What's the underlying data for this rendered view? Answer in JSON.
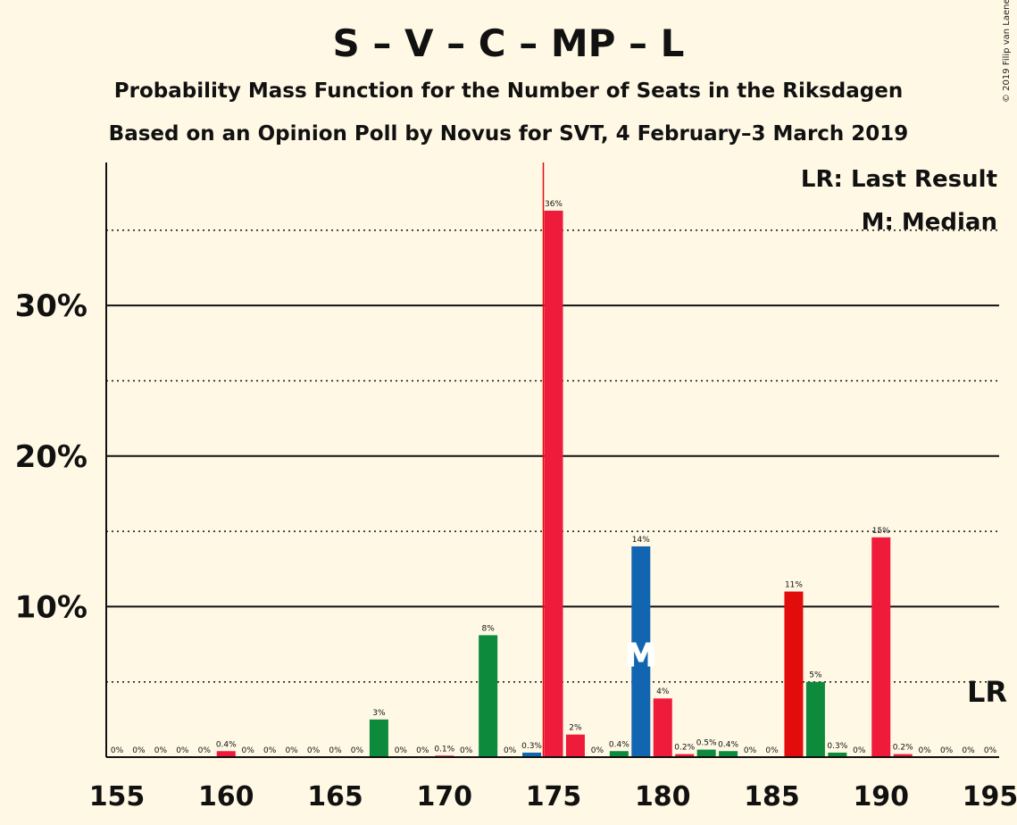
{
  "title": "S – V – C – MP – L",
  "subtitle1": "Probability Mass Function for the Number of Seats in the Riksdagen",
  "subtitle2": "Based on an Opinion Poll by Novus for SVT, 4 February–3 March 2019",
  "copyright": "© 2019 Filip van Laenen",
  "legend": {
    "last_result": "LR: Last Result",
    "median": "M: Median",
    "lr_marker": "LR",
    "median_marker": "M"
  },
  "chart_data": {
    "type": "bar",
    "xlim": [
      155,
      195
    ],
    "ylim": [
      0,
      39.5
    ],
    "xticks": [
      155,
      160,
      165,
      170,
      175,
      180,
      185,
      190,
      195
    ],
    "yticks": [
      {
        "value": 10,
        "label": "10%"
      },
      {
        "value": 20,
        "label": "20%"
      },
      {
        "value": 30,
        "label": "30%"
      }
    ],
    "minor_gridlines": [
      5,
      15,
      25,
      35
    ],
    "last_result": 175,
    "median": 179,
    "colors": {
      "red": "#ef1b3a",
      "darkred": "#e20c0c",
      "green": "#0d8a3c",
      "blue": "#1265b0"
    },
    "bars": [
      {
        "x": 155,
        "value": 0,
        "label": "0%",
        "color": "red"
      },
      {
        "x": 156,
        "value": 0,
        "label": "0%",
        "color": "red"
      },
      {
        "x": 157,
        "value": 0,
        "label": "0%",
        "color": "red"
      },
      {
        "x": 158,
        "value": 0,
        "label": "0%",
        "color": "red"
      },
      {
        "x": 159,
        "value": 0,
        "label": "0%",
        "color": "red"
      },
      {
        "x": 160,
        "value": 0.4,
        "label": "0.4%",
        "color": "red"
      },
      {
        "x": 161,
        "value": 0,
        "label": "0%",
        "color": "red"
      },
      {
        "x": 162,
        "value": 0,
        "label": "0%",
        "color": "red"
      },
      {
        "x": 163,
        "value": 0,
        "label": "0%",
        "color": "red"
      },
      {
        "x": 164,
        "value": 0,
        "label": "0%",
        "color": "red"
      },
      {
        "x": 165,
        "value": 0,
        "label": "0%",
        "color": "red"
      },
      {
        "x": 166,
        "value": 0,
        "label": "0%",
        "color": "red"
      },
      {
        "x": 167,
        "value": 2.5,
        "label": "3%",
        "color": "green"
      },
      {
        "x": 168,
        "value": 0,
        "label": "0%",
        "color": "red"
      },
      {
        "x": 169,
        "value": 0,
        "label": "0%",
        "color": "red"
      },
      {
        "x": 170,
        "value": 0.1,
        "label": "0.1%",
        "color": "red"
      },
      {
        "x": 171,
        "value": 0,
        "label": "0%",
        "color": "red"
      },
      {
        "x": 172,
        "value": 8.1,
        "label": "8%",
        "color": "green"
      },
      {
        "x": 173,
        "value": 0,
        "label": "0%",
        "color": "red"
      },
      {
        "x": 174,
        "value": 0.3,
        "label": "0.3%",
        "color": "blue"
      },
      {
        "x": 175,
        "value": 36.3,
        "label": "36%",
        "color": "red"
      },
      {
        "x": 176,
        "value": 1.5,
        "label": "2%",
        "color": "red"
      },
      {
        "x": 177,
        "value": 0,
        "label": "0%",
        "color": "red"
      },
      {
        "x": 178,
        "value": 0.4,
        "label": "0.4%",
        "color": "green"
      },
      {
        "x": 179,
        "value": 14.0,
        "label": "14%",
        "color": "blue"
      },
      {
        "x": 180,
        "value": 3.9,
        "label": "4%",
        "color": "red"
      },
      {
        "x": 181,
        "value": 0.2,
        "label": "0.2%",
        "color": "red"
      },
      {
        "x": 182,
        "value": 0.5,
        "label": "0.5%",
        "color": "green"
      },
      {
        "x": 183,
        "value": 0.4,
        "label": "0.4%",
        "color": "green"
      },
      {
        "x": 184,
        "value": 0,
        "label": "0%",
        "color": "red"
      },
      {
        "x": 185,
        "value": 0,
        "label": "0%",
        "color": "red"
      },
      {
        "x": 186,
        "value": 11.0,
        "label": "11%",
        "color": "darkred"
      },
      {
        "x": 187,
        "value": 5.0,
        "label": "5%",
        "color": "green"
      },
      {
        "x": 188,
        "value": 0.3,
        "label": "0.3%",
        "color": "green"
      },
      {
        "x": 189,
        "value": 0,
        "label": "0%",
        "color": "red"
      },
      {
        "x": 190,
        "value": 14.6,
        "label": "15%",
        "color": "red"
      },
      {
        "x": 191,
        "value": 0.2,
        "label": "0.2%",
        "color": "red"
      },
      {
        "x": 192,
        "value": 0,
        "label": "0%",
        "color": "red"
      },
      {
        "x": 193,
        "value": 0,
        "label": "0%",
        "color": "red"
      },
      {
        "x": 194,
        "value": 0,
        "label": "0%",
        "color": "red"
      },
      {
        "x": 195,
        "value": 0,
        "label": "0%",
        "color": "red"
      }
    ]
  }
}
